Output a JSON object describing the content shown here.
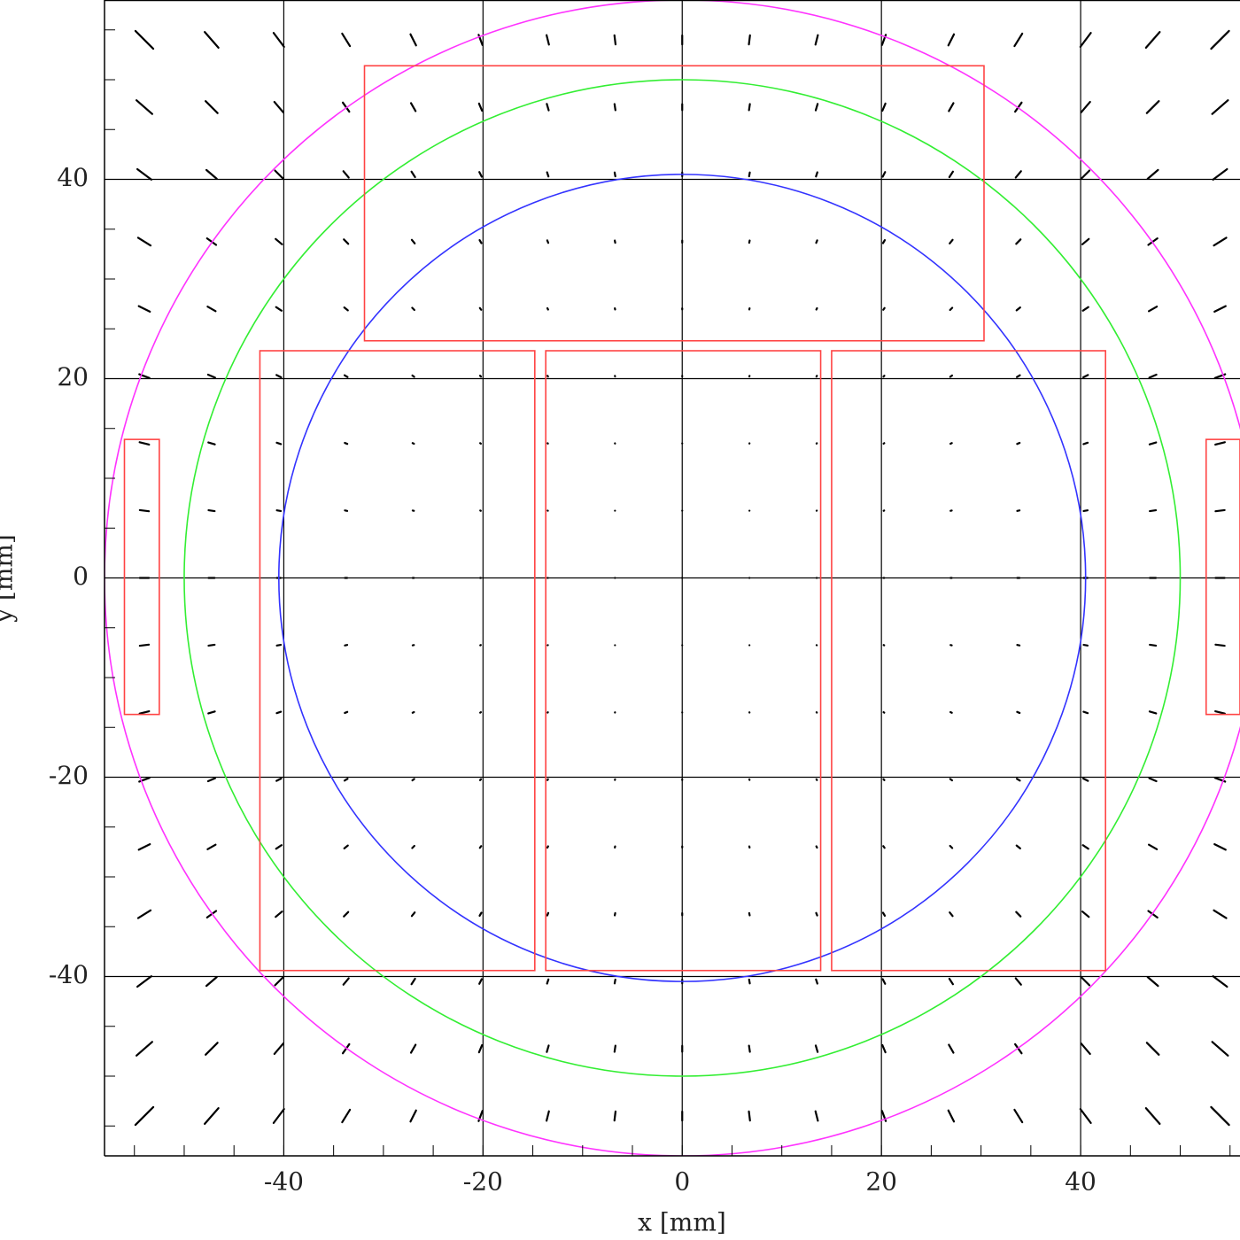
{
  "chart_data": {
    "type": "quiver",
    "xlabel": "x [mm]",
    "ylabel": "y [mm]",
    "xlim": [
      -58,
      56
    ],
    "ylim": [
      -58,
      58
    ],
    "xticks": [
      -40,
      -20,
      0,
      20,
      40
    ],
    "yticks": [
      -40,
      -20,
      0,
      20,
      40
    ],
    "xminorticks": [
      -55,
      -50,
      -45,
      -40,
      -35,
      -30,
      -25,
      -20,
      -15,
      -10,
      -5,
      0,
      5,
      10,
      15,
      20,
      25,
      30,
      35,
      40,
      45,
      50,
      55
    ],
    "yminorticks": [
      -55,
      -50,
      -45,
      -40,
      -35,
      -30,
      -25,
      -20,
      -15,
      -10,
      -5,
      0,
      5,
      10,
      15,
      20,
      25,
      30,
      35,
      40,
      45,
      50,
      55
    ],
    "grid": true,
    "vector_color": "#000000",
    "grid_x": [
      -54,
      -47.25,
      -40.5,
      -33.75,
      -27,
      -20.25,
      -13.5,
      -6.75,
      0,
      6.75,
      13.5,
      20.25,
      27,
      33.75,
      40.5,
      47.25,
      54
    ],
    "grid_y": [
      -54,
      -47.25,
      -40.5,
      -33.75,
      -27,
      -20.25,
      -13.5,
      -6.75,
      0,
      6.75,
      13.5,
      20.25,
      27,
      33.75,
      40.5,
      47.25,
      54
    ],
    "u": [
      [
        -1.79,
        -1.38,
        -1.05,
        -0.78,
        -0.56,
        -0.38,
        -0.24,
        -0.11,
        0,
        0.11,
        0.24,
        0.38,
        0.56,
        0.78,
        1.05,
        1.38,
        1.79
      ],
      [
        -1.58,
        -1.2,
        -0.89,
        -0.65,
        -0.46,
        -0.3,
        -0.19,
        -0.09,
        0,
        0.09,
        0.19,
        0.3,
        0.46,
        0.65,
        0.89,
        1.2,
        1.58
      ],
      [
        -1.4,
        -1.04,
        -0.76,
        -0.53,
        -0.36,
        -0.24,
        -0.14,
        -0.07,
        0,
        0.07,
        0.14,
        0.24,
        0.36,
        0.53,
        0.76,
        1.04,
        1.4
      ],
      [
        -1.25,
        -0.91,
        -0.64,
        -0.44,
        -0.29,
        -0.18,
        -0.1,
        -0.05,
        0,
        0.05,
        0.1,
        0.18,
        0.29,
        0.44,
        0.64,
        0.91,
        1.25
      ],
      [
        -1.12,
        -0.8,
        -0.55,
        -0.36,
        -0.22,
        -0.13,
        -0.07,
        -0.03,
        0,
        0.03,
        0.07,
        0.13,
        0.22,
        0.36,
        0.55,
        0.8,
        1.12
      ],
      [
        -1.02,
        -0.71,
        -0.47,
        -0.3,
        -0.18,
        -0.09,
        -0.05,
        -0.02,
        0,
        0.02,
        0.05,
        0.09,
        0.18,
        0.3,
        0.47,
        0.71,
        1.02
      ],
      [
        -0.95,
        -0.65,
        -0.42,
        -0.25,
        -0.14,
        -0.07,
        -0.03,
        -0.01,
        0,
        0.01,
        0.03,
        0.07,
        0.14,
        0.25,
        0.42,
        0.65,
        0.95
      ],
      [
        -0.91,
        -0.61,
        -0.39,
        -0.23,
        -0.12,
        -0.05,
        -0.02,
        0,
        0,
        0,
        0.02,
        0.05,
        0.12,
        0.23,
        0.39,
        0.61,
        0.91
      ],
      [
        -0.9,
        -0.6,
        -0.38,
        -0.22,
        -0.11,
        -0.05,
        -0.01,
        0,
        0,
        0,
        0.01,
        0.05,
        0.11,
        0.22,
        0.38,
        0.6,
        0.9
      ],
      [
        -0.91,
        -0.61,
        -0.39,
        -0.23,
        -0.12,
        -0.05,
        -0.02,
        0,
        0,
        0,
        0.02,
        0.05,
        0.12,
        0.23,
        0.39,
        0.61,
        0.91
      ],
      [
        -0.95,
        -0.65,
        -0.42,
        -0.25,
        -0.14,
        -0.07,
        -0.03,
        -0.01,
        0,
        0.01,
        0.03,
        0.07,
        0.14,
        0.25,
        0.42,
        0.65,
        0.95
      ],
      [
        -1.02,
        -0.71,
        -0.47,
        -0.3,
        -0.18,
        -0.09,
        -0.05,
        -0.02,
        0,
        0.02,
        0.05,
        0.09,
        0.18,
        0.3,
        0.47,
        0.71,
        1.02
      ],
      [
        -1.12,
        -0.8,
        -0.55,
        -0.36,
        -0.22,
        -0.13,
        -0.07,
        -0.03,
        0,
        0.03,
        0.07,
        0.13,
        0.22,
        0.36,
        0.55,
        0.8,
        1.12
      ],
      [
        -1.25,
        -0.91,
        -0.64,
        -0.44,
        -0.29,
        -0.18,
        -0.1,
        -0.05,
        0,
        0.05,
        0.1,
        0.18,
        0.29,
        0.44,
        0.64,
        0.91,
        1.25
      ],
      [
        -1.4,
        -1.04,
        -0.76,
        -0.53,
        -0.36,
        -0.24,
        -0.14,
        -0.07,
        0,
        0.07,
        0.14,
        0.24,
        0.36,
        0.53,
        0.76,
        1.04,
        1.4
      ],
      [
        -1.58,
        -1.2,
        -0.89,
        -0.65,
        -0.46,
        -0.3,
        -0.19,
        -0.09,
        0,
        0.09,
        0.19,
        0.3,
        0.46,
        0.65,
        0.89,
        1.2,
        1.58
      ],
      [
        -1.79,
        -1.38,
        -1.05,
        -0.78,
        -0.56,
        -0.38,
        -0.24,
        -0.11,
        0,
        0.11,
        0.24,
        0.38,
        0.56,
        0.78,
        1.05,
        1.38,
        1.79
      ]
    ],
    "v": [
      [
        -1.79,
        -1.58,
        -1.4,
        -1.25,
        -1.12,
        -1.02,
        -0.95,
        -0.91,
        -0.9,
        -0.91,
        -0.95,
        -1.02,
        -1.12,
        -1.25,
        -1.4,
        -1.58,
        -1.79
      ],
      [
        -1.38,
        -1.2,
        -1.04,
        -0.91,
        -0.8,
        -0.71,
        -0.65,
        -0.61,
        -0.6,
        -0.61,
        -0.65,
        -0.71,
        -0.8,
        -0.91,
        -1.04,
        -1.2,
        -1.38
      ],
      [
        -1.05,
        -0.89,
        -0.76,
        -0.64,
        -0.55,
        -0.47,
        -0.42,
        -0.39,
        -0.38,
        -0.39,
        -0.42,
        -0.47,
        -0.55,
        -0.64,
        -0.76,
        -0.89,
        -1.05
      ],
      [
        -0.78,
        -0.65,
        -0.53,
        -0.44,
        -0.36,
        -0.3,
        -0.25,
        -0.23,
        -0.22,
        -0.23,
        -0.25,
        -0.3,
        -0.36,
        -0.44,
        -0.53,
        -0.65,
        -0.78
      ],
      [
        -0.56,
        -0.46,
        -0.36,
        -0.29,
        -0.22,
        -0.18,
        -0.14,
        -0.12,
        -0.11,
        -0.12,
        -0.14,
        -0.18,
        -0.22,
        -0.29,
        -0.36,
        -0.46,
        -0.56
      ],
      [
        -0.38,
        -0.3,
        -0.24,
        -0.18,
        -0.13,
        -0.09,
        -0.07,
        -0.05,
        -0.05,
        -0.05,
        -0.07,
        -0.09,
        -0.13,
        -0.18,
        -0.24,
        -0.3,
        -0.38
      ],
      [
        -0.24,
        -0.19,
        -0.14,
        -0.1,
        -0.07,
        -0.05,
        -0.03,
        -0.02,
        -0.01,
        -0.02,
        -0.03,
        -0.05,
        -0.07,
        -0.1,
        -0.14,
        -0.19,
        -0.24
      ],
      [
        -0.11,
        -0.09,
        -0.07,
        -0.05,
        -0.03,
        -0.02,
        -0.01,
        0,
        0,
        0,
        -0.01,
        -0.02,
        -0.03,
        -0.05,
        -0.07,
        -0.09,
        -0.11
      ],
      [
        0,
        0,
        0,
        0,
        0,
        0,
        0,
        0,
        0,
        0,
        0,
        0,
        0,
        0,
        0,
        0,
        0
      ],
      [
        0.11,
        0.09,
        0.07,
        0.05,
        0.03,
        0.02,
        0.01,
        0,
        0,
        0,
        0.01,
        0.02,
        0.03,
        0.05,
        0.07,
        0.09,
        0.11
      ],
      [
        0.24,
        0.19,
        0.14,
        0.1,
        0.07,
        0.05,
        0.03,
        0.02,
        0.01,
        0.02,
        0.03,
        0.05,
        0.07,
        0.1,
        0.14,
        0.19,
        0.24
      ],
      [
        0.38,
        0.3,
        0.24,
        0.18,
        0.13,
        0.09,
        0.07,
        0.05,
        0.05,
        0.05,
        0.07,
        0.09,
        0.13,
        0.18,
        0.24,
        0.3,
        0.38
      ],
      [
        0.56,
        0.46,
        0.36,
        0.29,
        0.22,
        0.18,
        0.14,
        0.12,
        0.11,
        0.12,
        0.14,
        0.18,
        0.22,
        0.29,
        0.36,
        0.46,
        0.56
      ],
      [
        0.78,
        0.65,
        0.53,
        0.44,
        0.36,
        0.3,
        0.25,
        0.23,
        0.22,
        0.23,
        0.25,
        0.3,
        0.36,
        0.44,
        0.53,
        0.65,
        0.78
      ],
      [
        1.05,
        0.89,
        0.76,
        0.64,
        0.55,
        0.47,
        0.42,
        0.39,
        0.38,
        0.39,
        0.42,
        0.47,
        0.55,
        0.64,
        0.76,
        0.89,
        1.05
      ],
      [
        1.38,
        1.2,
        1.04,
        0.91,
        0.8,
        0.71,
        0.65,
        0.61,
        0.6,
        0.61,
        0.65,
        0.71,
        0.8,
        0.91,
        1.04,
        1.2,
        1.38
      ],
      [
        1.79,
        1.58,
        1.4,
        1.25,
        1.12,
        1.02,
        0.95,
        0.91,
        0.9,
        0.91,
        0.95,
        1.02,
        1.12,
        1.25,
        1.4,
        1.58,
        1.79
      ]
    ],
    "circles": [
      {
        "radius": 58,
        "color": "#ff33ff"
      },
      {
        "radius": 50,
        "color": "#33ee33"
      },
      {
        "radius": 40.5,
        "color": "#3333ff"
      }
    ],
    "rectangles_color": "#ff4444",
    "rectangles": [
      {
        "x": [
          -31.9,
          30.3
        ],
        "y": [
          23.8,
          51.4
        ]
      },
      {
        "x": [
          -42.4,
          -14.8
        ],
        "y": [
          -39.4,
          22.8
        ]
      },
      {
        "x": [
          -13.7,
          13.9
        ],
        "y": [
          -39.4,
          22.8
        ]
      },
      {
        "x": [
          15,
          42.5
        ],
        "y": [
          -39.4,
          22.8
        ]
      },
      {
        "x": [
          -56,
          -52.5
        ],
        "y": [
          -13.7,
          13.9
        ]
      },
      {
        "x": [
          52.6,
          56
        ],
        "y": [
          -13.7,
          13.9
        ]
      }
    ]
  }
}
